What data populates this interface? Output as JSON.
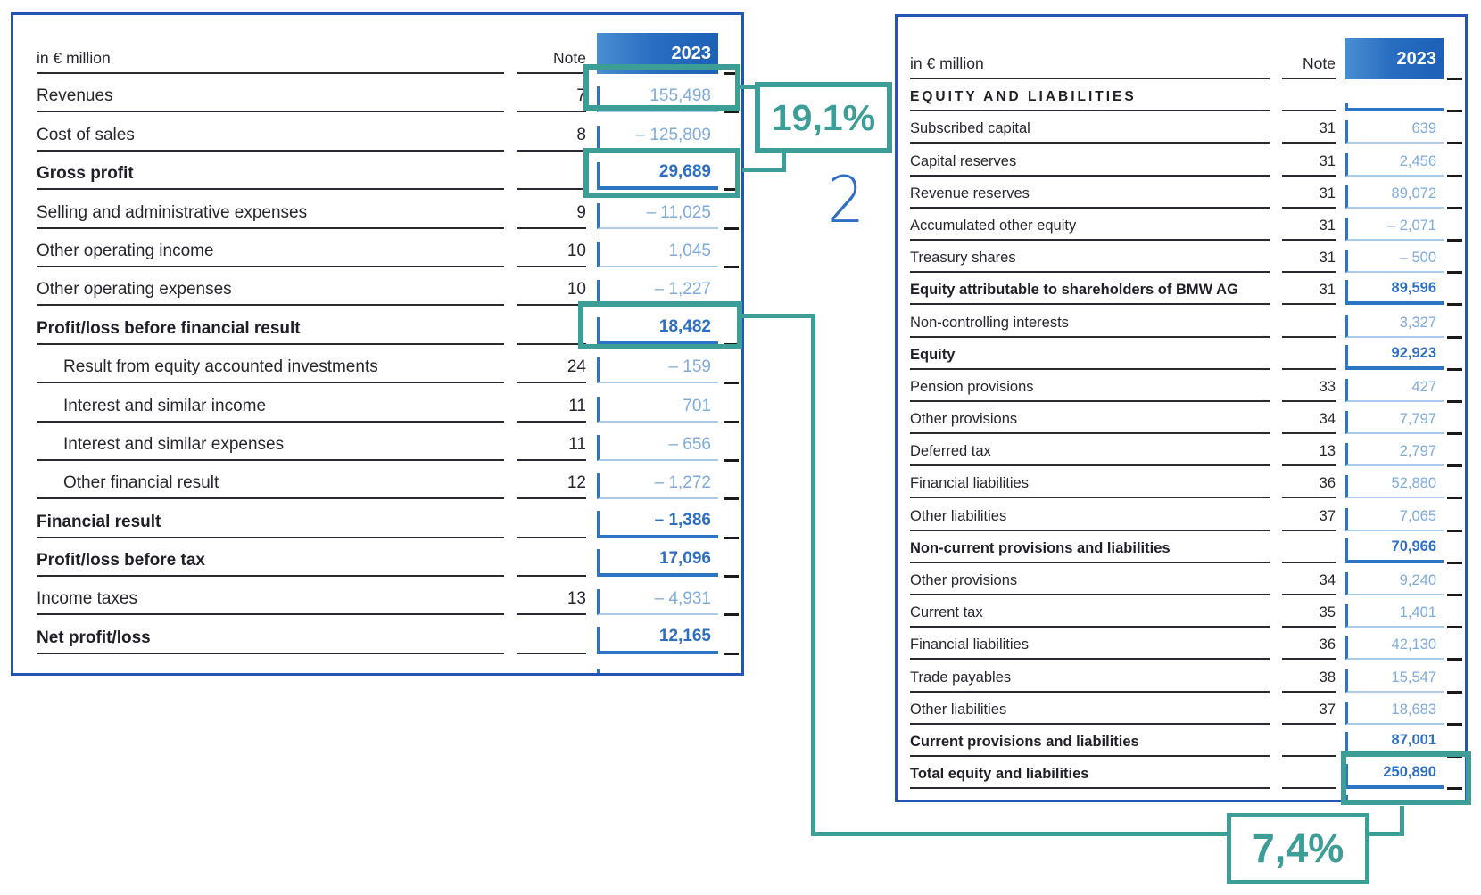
{
  "colors": {
    "teal": "#3C9E96",
    "table_border": "#2355B4",
    "band_blue_light": "#4A8ED2",
    "band_blue_mid": "#2A6EC2",
    "band_blue_dark": "#1C60B8",
    "vline": "#2C74C4",
    "vline_light": "#A9CBE9",
    "value_blue": "#7FABDC",
    "value_blue_bold": "#2F6FC3",
    "ink": "#26262E",
    "rule_dark": "#2A2A32",
    "dash": "#1A1A1A"
  },
  "annotations": {
    "ratio_gross_margin": "19,1%",
    "ratio_return": "7,4%",
    "step_number": "2"
  },
  "income_statement": {
    "unit_label": "in € million",
    "note_header": "Note",
    "year_header": "2023",
    "rows": [
      {
        "label": "Revenues",
        "note": "7",
        "value": "155,498",
        "bold": false,
        "indent": false,
        "highlight": true
      },
      {
        "label": "Cost of sales",
        "note": "8",
        "value": "– 125,809",
        "bold": false,
        "indent": false,
        "highlight": false
      },
      {
        "label": "Gross profit",
        "note": "",
        "value": "29,689",
        "bold": true,
        "indent": false,
        "highlight": true
      },
      {
        "label": "Selling and administrative expenses",
        "note": "9",
        "value": "– 11,025",
        "bold": false,
        "indent": false,
        "highlight": false
      },
      {
        "label": "Other operating income",
        "note": "10",
        "value": "1,045",
        "bold": false,
        "indent": false,
        "highlight": false
      },
      {
        "label": "Other operating expenses",
        "note": "10",
        "value": "– 1,227",
        "bold": false,
        "indent": false,
        "highlight": false
      },
      {
        "label": "Profit/loss before financial result",
        "note": "",
        "value": "18,482",
        "bold": true,
        "indent": false,
        "highlight": true
      },
      {
        "label": "Result from equity accounted investments",
        "note": "24",
        "value": "– 159",
        "bold": false,
        "indent": true,
        "highlight": false
      },
      {
        "label": "Interest and similar income",
        "note": "11",
        "value": "701",
        "bold": false,
        "indent": true,
        "highlight": false
      },
      {
        "label": "Interest and similar expenses",
        "note": "11",
        "value": "– 656",
        "bold": false,
        "indent": true,
        "highlight": false
      },
      {
        "label": "Other financial result",
        "note": "12",
        "value": "– 1,272",
        "bold": false,
        "indent": true,
        "highlight": false
      },
      {
        "label": "Financial result",
        "note": "",
        "value": "– 1,386",
        "bold": true,
        "indent": false,
        "highlight": false
      },
      {
        "label": "Profit/loss before tax",
        "note": "",
        "value": "17,096",
        "bold": true,
        "indent": false,
        "highlight": false
      },
      {
        "label": "Income taxes",
        "note": "13",
        "value": "– 4,931",
        "bold": false,
        "indent": false,
        "highlight": false
      },
      {
        "label": "Net profit/loss",
        "note": "",
        "value": "12,165",
        "bold": true,
        "indent": false,
        "highlight": false
      }
    ]
  },
  "balance_sheet": {
    "unit_label": "in € million",
    "note_header": "Note",
    "year_header": "2023",
    "section_header": "EQUITY AND LIABILITIES",
    "rows": [
      {
        "label": "Subscribed capital",
        "note": "31",
        "value": "639",
        "bold": false,
        "indent": false,
        "highlight": false
      },
      {
        "label": "Capital reserves",
        "note": "31",
        "value": "2,456",
        "bold": false,
        "indent": false,
        "highlight": false
      },
      {
        "label": "Revenue reserves",
        "note": "31",
        "value": "89,072",
        "bold": false,
        "indent": false,
        "highlight": false
      },
      {
        "label": "Accumulated other equity",
        "note": "31",
        "value": "– 2,071",
        "bold": false,
        "indent": false,
        "highlight": false
      },
      {
        "label": "Treasury shares",
        "note": "31",
        "value": "– 500",
        "bold": false,
        "indent": false,
        "highlight": false
      },
      {
        "label": "Equity attributable to shareholders of BMW AG",
        "note": "31",
        "value": "89,596",
        "bold": true,
        "indent": false,
        "highlight": false
      },
      {
        "label": "Non-controlling interests",
        "note": "",
        "value": "3,327",
        "bold": false,
        "indent": false,
        "highlight": false
      },
      {
        "label": "Equity",
        "note": "",
        "value": "92,923",
        "bold": true,
        "indent": false,
        "highlight": false
      },
      {
        "label": "Pension provisions",
        "note": "33",
        "value": "427",
        "bold": false,
        "indent": false,
        "highlight": false
      },
      {
        "label": "Other provisions",
        "note": "34",
        "value": "7,797",
        "bold": false,
        "indent": false,
        "highlight": false
      },
      {
        "label": "Deferred tax",
        "note": "13",
        "value": "2,797",
        "bold": false,
        "indent": false,
        "highlight": false
      },
      {
        "label": "Financial liabilities",
        "note": "36",
        "value": "52,880",
        "bold": false,
        "indent": false,
        "highlight": false
      },
      {
        "label": "Other liabilities",
        "note": "37",
        "value": "7,065",
        "bold": false,
        "indent": false,
        "highlight": false
      },
      {
        "label": "Non-current provisions and liabilities",
        "note": "",
        "value": "70,966",
        "bold": true,
        "indent": false,
        "highlight": false
      },
      {
        "label": "Other provisions",
        "note": "34",
        "value": "9,240",
        "bold": false,
        "indent": false,
        "highlight": false
      },
      {
        "label": "Current tax",
        "note": "35",
        "value": "1,401",
        "bold": false,
        "indent": false,
        "highlight": false
      },
      {
        "label": "Financial liabilities",
        "note": "36",
        "value": "42,130",
        "bold": false,
        "indent": false,
        "highlight": false
      },
      {
        "label": "Trade payables",
        "note": "38",
        "value": "15,547",
        "bold": false,
        "indent": false,
        "highlight": false
      },
      {
        "label": "Other liabilities",
        "note": "37",
        "value": "18,683",
        "bold": false,
        "indent": false,
        "highlight": false
      },
      {
        "label": "Current provisions and liabilities",
        "note": "",
        "value": "87,001",
        "bold": true,
        "indent": false,
        "highlight": false
      },
      {
        "label": "Total equity and liabilities",
        "note": "",
        "value": "250,890",
        "bold": true,
        "indent": false,
        "highlight": true
      }
    ]
  }
}
